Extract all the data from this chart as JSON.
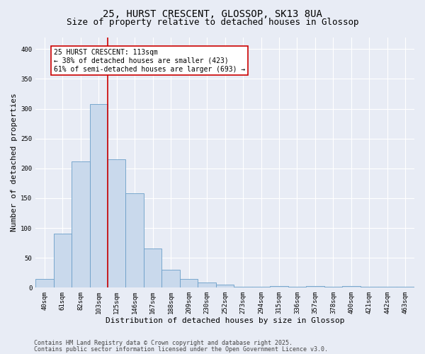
{
  "title_line1": "25, HURST CRESCENT, GLOSSOP, SK13 8UA",
  "title_line2": "Size of property relative to detached houses in Glossop",
  "xlabel": "Distribution of detached houses by size in Glossop",
  "ylabel": "Number of detached properties",
  "categories": [
    "40sqm",
    "61sqm",
    "82sqm",
    "103sqm",
    "125sqm",
    "146sqm",
    "167sqm",
    "188sqm",
    "209sqm",
    "230sqm",
    "252sqm",
    "273sqm",
    "294sqm",
    "315sqm",
    "336sqm",
    "357sqm",
    "378sqm",
    "400sqm",
    "421sqm",
    "442sqm",
    "463sqm"
  ],
  "values": [
    14,
    90,
    212,
    308,
    215,
    158,
    65,
    30,
    15,
    8,
    5,
    2,
    1,
    3,
    1,
    3,
    1,
    3,
    1,
    1,
    2
  ],
  "bar_color": "#c9d9ec",
  "bar_edge_color": "#6a9ec8",
  "bar_linewidth": 0.6,
  "vline_x_index": 3.5,
  "vline_color": "#cc0000",
  "annotation_text_line1": "25 HURST CRESCENT: 113sqm",
  "annotation_text_line2": "← 38% of detached houses are smaller (423)",
  "annotation_text_line3": "61% of semi-detached houses are larger (693) →",
  "annotation_box_color": "#cc0000",
  "annotation_box_facecolor": "#ffffff",
  "ylim": [
    0,
    420
  ],
  "yticks": [
    0,
    50,
    100,
    150,
    200,
    250,
    300,
    350,
    400
  ],
  "background_color": "#e8ecf5",
  "grid_color": "#ffffff",
  "footer_line1": "Contains HM Land Registry data © Crown copyright and database right 2025.",
  "footer_line2": "Contains public sector information licensed under the Open Government Licence v3.0.",
  "title_fontsize": 10,
  "subtitle_fontsize": 9,
  "axis_label_fontsize": 8,
  "tick_fontsize": 6.5,
  "annotation_fontsize": 7,
  "footer_fontsize": 6
}
